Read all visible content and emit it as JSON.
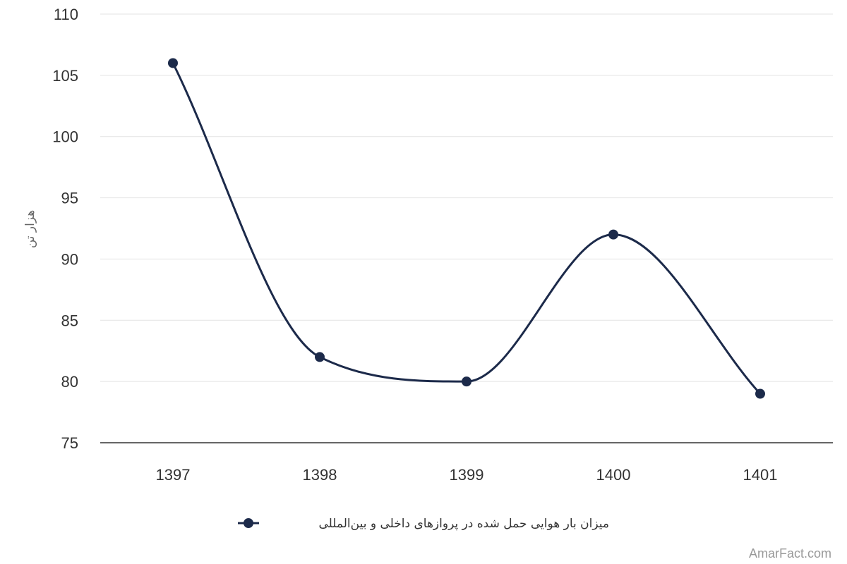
{
  "chart_data": {
    "type": "line",
    "x": [
      "1397",
      "1398",
      "1399",
      "1400",
      "1401"
    ],
    "series": [
      {
        "name": "میزان بار هوایی حمل شده در پروازهای داخلی و بین‌المللی",
        "values": [
          106,
          82,
          80,
          92,
          79
        ]
      }
    ],
    "ylabel": "هزار تن",
    "xlabel": "",
    "ylim": [
      75,
      110
    ],
    "yticks": [
      75,
      80,
      85,
      90,
      95,
      100,
      105,
      110
    ],
    "grid": true,
    "legend_position": "bottom",
    "smooth": true,
    "colors": {
      "series": "#1c2a4a",
      "grid": "#e3e3e3",
      "axis": "#333333"
    }
  },
  "watermark": "AmarFact.com"
}
